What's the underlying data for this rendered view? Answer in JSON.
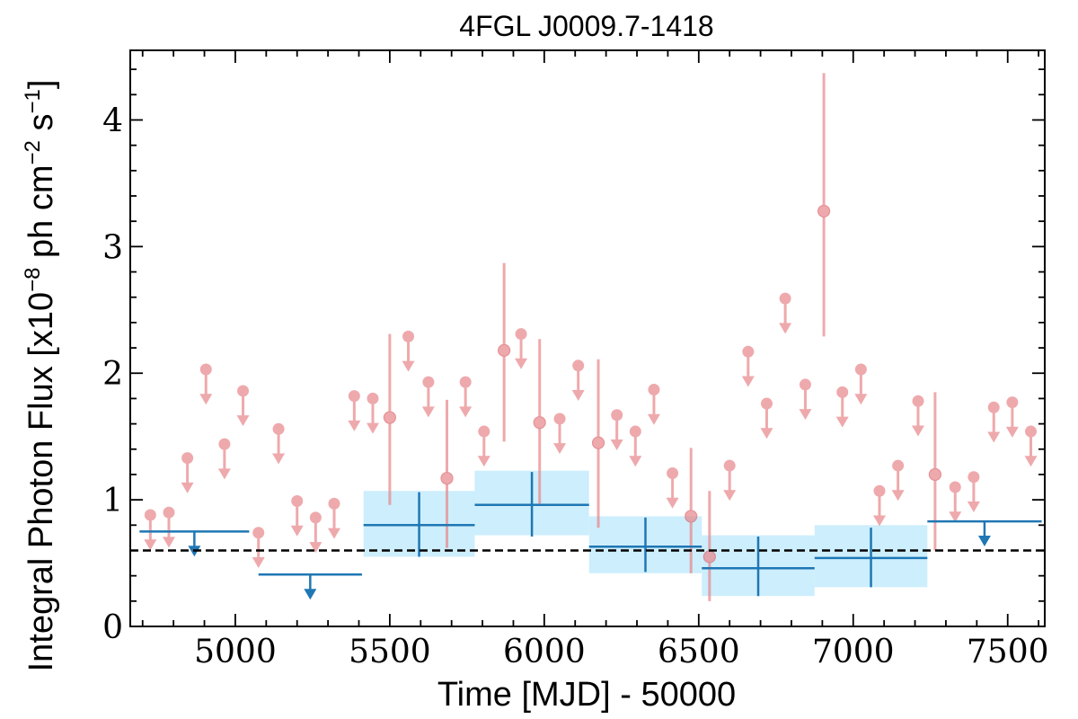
{
  "chart_data": {
    "type": "scatter",
    "title": "4FGL J0009.7-1418",
    "xlabel": "Time [MJD] - 50000",
    "ylabel": "Integral Photon Flux [x10",
    "ylabel_exp1": "−8",
    "ylabel_mid": " ph cm",
    "ylabel_exp2": "−2",
    "ylabel_mid2": " s",
    "ylabel_exp3": "−1",
    "ylabel_end": "]",
    "xlim": [
      4660,
      7620
    ],
    "ylim": [
      0,
      4.55
    ],
    "xticks": [
      5000,
      5500,
      6000,
      6500,
      7000,
      7500
    ],
    "yticks": [
      0,
      1,
      2,
      3,
      4
    ],
    "baseline": 0.6,
    "colors": {
      "short_bins": "#e8868a",
      "long_bins": "#1f77b4",
      "long_bins_band": "#cdeefc",
      "baseline": "#000000"
    },
    "short_bins_detections": [
      {
        "x": 5500,
        "y": 1.65,
        "ylo": 0.96,
        "yhi": 2.31
      },
      {
        "x": 5685,
        "y": 1.17,
        "ylo": 0.62,
        "yhi": 1.79
      },
      {
        "x": 5870,
        "y": 2.18,
        "ylo": 1.46,
        "yhi": 2.87
      },
      {
        "x": 5985,
        "y": 1.61,
        "ylo": 0.97,
        "yhi": 2.27
      },
      {
        "x": 6175,
        "y": 1.45,
        "ylo": 0.78,
        "yhi": 2.11
      },
      {
        "x": 6475,
        "y": 0.87,
        "ylo": 0.42,
        "yhi": 1.41
      },
      {
        "x": 6535,
        "y": 0.55,
        "ylo": 0.2,
        "yhi": 1.07
      },
      {
        "x": 6905,
        "y": 3.28,
        "ylo": 2.29,
        "yhi": 4.37
      },
      {
        "x": 7265,
        "y": 1.2,
        "ylo": 0.6,
        "yhi": 1.85
      }
    ],
    "short_bins_upper_limits": [
      {
        "x": 4725,
        "y": 0.88
      },
      {
        "x": 4785,
        "y": 0.9
      },
      {
        "x": 4845,
        "y": 1.33
      },
      {
        "x": 4905,
        "y": 2.03
      },
      {
        "x": 4965,
        "y": 1.44
      },
      {
        "x": 5025,
        "y": 1.86
      },
      {
        "x": 5075,
        "y": 0.74
      },
      {
        "x": 5140,
        "y": 1.56
      },
      {
        "x": 5200,
        "y": 0.99
      },
      {
        "x": 5260,
        "y": 0.86
      },
      {
        "x": 5320,
        "y": 0.97
      },
      {
        "x": 5385,
        "y": 1.82
      },
      {
        "x": 5445,
        "y": 1.8
      },
      {
        "x": 5560,
        "y": 2.29
      },
      {
        "x": 5625,
        "y": 1.93
      },
      {
        "x": 5745,
        "y": 1.93
      },
      {
        "x": 5805,
        "y": 1.54
      },
      {
        "x": 5925,
        "y": 2.31
      },
      {
        "x": 6050,
        "y": 1.64
      },
      {
        "x": 6110,
        "y": 2.06
      },
      {
        "x": 6235,
        "y": 1.67
      },
      {
        "x": 6295,
        "y": 1.54
      },
      {
        "x": 6355,
        "y": 1.87
      },
      {
        "x": 6415,
        "y": 1.21
      },
      {
        "x": 6600,
        "y": 1.27
      },
      {
        "x": 6660,
        "y": 2.17
      },
      {
        "x": 6720,
        "y": 1.76
      },
      {
        "x": 6780,
        "y": 2.59
      },
      {
        "x": 6845,
        "y": 1.91
      },
      {
        "x": 6965,
        "y": 1.85
      },
      {
        "x": 7025,
        "y": 2.03
      },
      {
        "x": 7085,
        "y": 1.07
      },
      {
        "x": 7145,
        "y": 1.27
      },
      {
        "x": 7210,
        "y": 1.78
      },
      {
        "x": 7330,
        "y": 1.1
      },
      {
        "x": 7390,
        "y": 1.18
      },
      {
        "x": 7455,
        "y": 1.73
      },
      {
        "x": 7515,
        "y": 1.77
      },
      {
        "x": 7575,
        "y": 1.54
      }
    ],
    "long_bins_detections": [
      {
        "x0": 5415,
        "x1": 5775,
        "y": 0.8,
        "ylo": 0.55,
        "yhi": 1.06,
        "bandlo": 0.55,
        "bandhi": 1.07
      },
      {
        "x0": 5775,
        "x1": 6145,
        "y": 0.96,
        "ylo": 0.71,
        "yhi": 1.22,
        "bandlo": 0.72,
        "bandhi": 1.23
      },
      {
        "x0": 6145,
        "x1": 6510,
        "y": 0.63,
        "ylo": 0.43,
        "yhi": 0.86,
        "bandlo": 0.42,
        "bandhi": 0.87
      },
      {
        "x0": 6510,
        "x1": 6875,
        "y": 0.46,
        "ylo": 0.24,
        "yhi": 0.71,
        "bandlo": 0.24,
        "bandhi": 0.72
      },
      {
        "x0": 6875,
        "x1": 7240,
        "y": 0.54,
        "ylo": 0.31,
        "yhi": 0.78,
        "bandlo": 0.31,
        "bandhi": 0.8
      }
    ],
    "long_bins_upper_limits": [
      {
        "x0": 4690,
        "x1": 5045,
        "y": 0.75
      },
      {
        "x0": 5075,
        "x1": 5410,
        "y": 0.41
      },
      {
        "x0": 7240,
        "x1": 7610,
        "y": 0.83
      }
    ]
  }
}
